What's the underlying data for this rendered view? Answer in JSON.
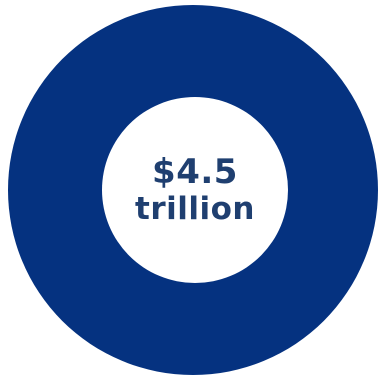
{
  "donut": {
    "amount": "$4.5",
    "unit": "trillion",
    "colors": {
      "ring": "#053280",
      "center": "#ffffff",
      "text": "#1f3f70"
    }
  }
}
